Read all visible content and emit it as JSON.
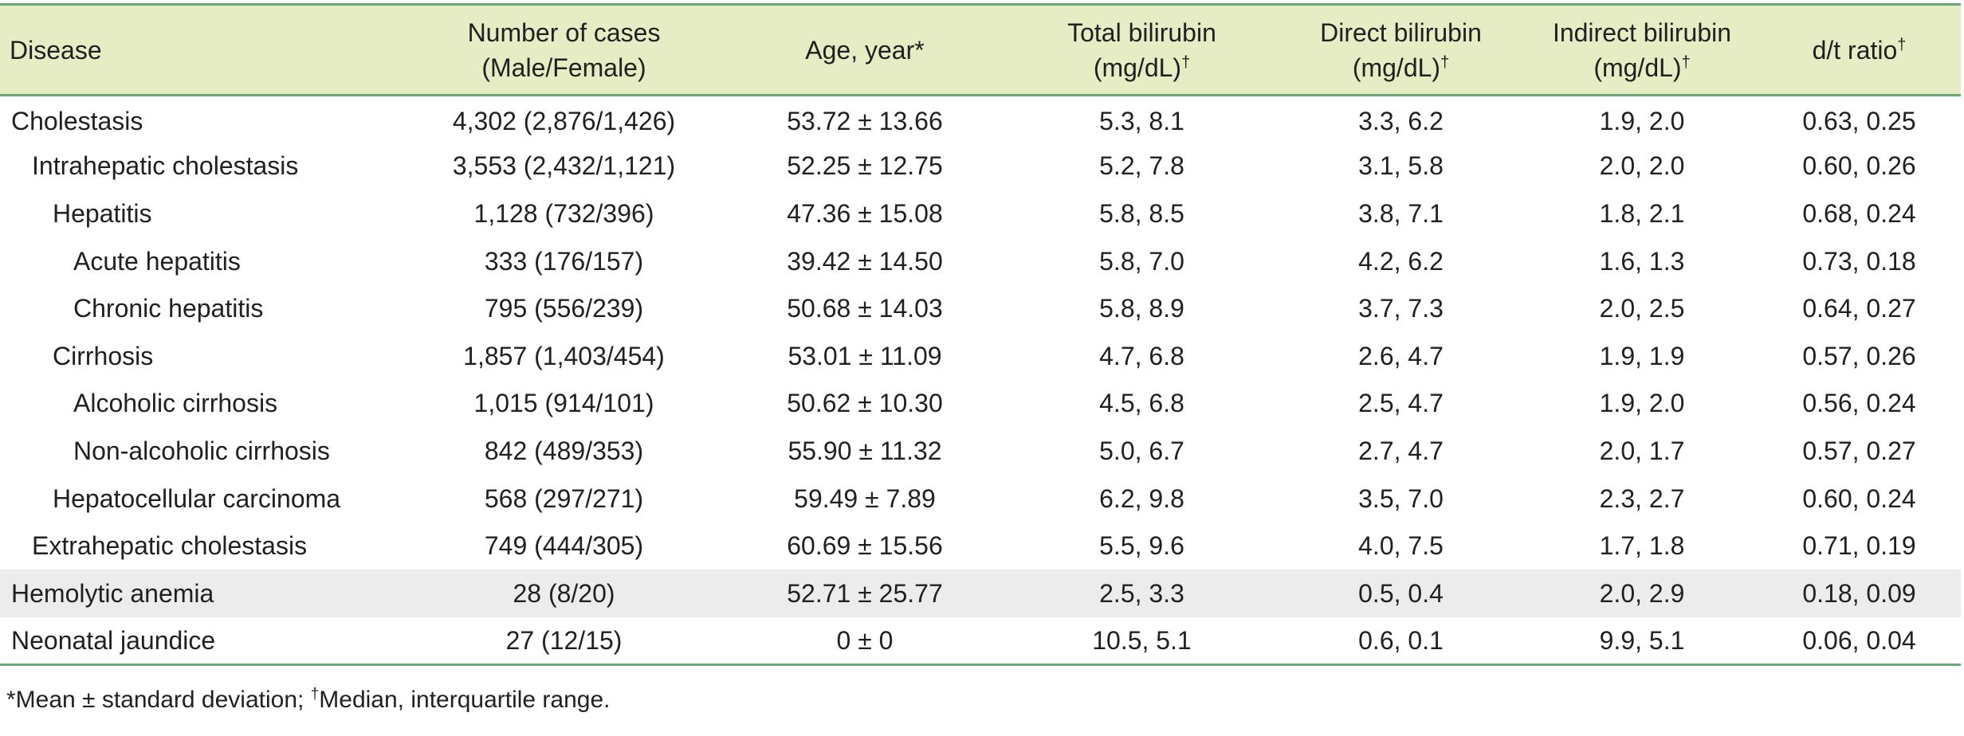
{
  "table": {
    "headers": [
      {
        "line1": "Disease",
        "line2": "",
        "mark": ""
      },
      {
        "line1": "Number of cases",
        "line2": "(Male/Female)",
        "mark": ""
      },
      {
        "line1": "Age, year*",
        "line2": "",
        "mark": ""
      },
      {
        "line1": "Total bilirubin",
        "line2": "(mg/dL)",
        "mark": "†"
      },
      {
        "line1": "Direct bilirubin",
        "line2": "(mg/dL)",
        "mark": "†"
      },
      {
        "line1": "Indirect bilirubin",
        "line2": "(mg/dL)",
        "mark": "†"
      },
      {
        "line1": "d/t ratio",
        "line2": "",
        "mark": "†"
      }
    ],
    "rows": [
      {
        "level": 0,
        "shaded": false,
        "cells": [
          "Cholestasis",
          "4,302 (2,876/1,426)",
          "53.72 ± 13.66",
          "5.3, 8.1",
          "3.3, 6.2",
          "1.9, 2.0",
          "0.63, 0.25"
        ]
      },
      {
        "level": 1,
        "shaded": false,
        "cells": [
          "Intrahepatic cholestasis",
          "3,553 (2,432/1,121)",
          "52.25 ± 12.75",
          "5.2, 7.8",
          "3.1, 5.8",
          "2.0, 2.0",
          "0.60, 0.26"
        ]
      },
      {
        "level": 2,
        "shaded": false,
        "cells": [
          "Hepatitis",
          "1,128 (732/396)",
          "47.36 ± 15.08",
          "5.8, 8.5",
          "3.8, 7.1",
          "1.8, 2.1",
          "0.68, 0.24"
        ]
      },
      {
        "level": 3,
        "shaded": false,
        "cells": [
          "Acute hepatitis",
          "333 (176/157)",
          "39.42 ± 14.50",
          "5.8, 7.0",
          "4.2, 6.2",
          "1.6, 1.3",
          "0.73, 0.18"
        ]
      },
      {
        "level": 3,
        "shaded": false,
        "cells": [
          "Chronic hepatitis",
          "795 (556/239)",
          "50.68 ± 14.03",
          "5.8, 8.9",
          "3.7, 7.3",
          "2.0, 2.5",
          "0.64, 0.27"
        ]
      },
      {
        "level": 2,
        "shaded": false,
        "cells": [
          "Cirrhosis",
          "1,857 (1,403/454)",
          "53.01 ± 11.09",
          "4.7, 6.8",
          "2.6, 4.7",
          "1.9, 1.9",
          "0.57, 0.26"
        ]
      },
      {
        "level": 3,
        "shaded": false,
        "cells": [
          "Alcoholic cirrhosis",
          "1,015 (914/101)",
          "50.62 ± 10.30",
          "4.5, 6.8",
          "2.5, 4.7",
          "1.9, 2.0",
          "0.56, 0.24"
        ]
      },
      {
        "level": 3,
        "shaded": false,
        "cells": [
          "Non-alcoholic cirrhosis",
          "842 (489/353)",
          "55.90 ± 11.32",
          "5.0, 6.7",
          "2.7, 4.7",
          "2.0, 1.7",
          "0.57, 0.27"
        ]
      },
      {
        "level": 2,
        "shaded": false,
        "cells": [
          "Hepatocellular carcinoma",
          "568 (297/271)",
          "59.49 ± 7.89",
          "6.2, 9.8",
          "3.5, 7.0",
          "2.3, 2.7",
          "0.60, 0.24"
        ]
      },
      {
        "level": 1,
        "shaded": false,
        "cells": [
          "Extrahepatic cholestasis",
          "749 (444/305)",
          "60.69 ± 15.56",
          "5.5, 9.6",
          "4.0, 7.5",
          "1.7, 1.8",
          "0.71, 0.19"
        ]
      },
      {
        "level": 0,
        "shaded": true,
        "cells": [
          "Hemolytic anemia",
          "28 (8/20)",
          "52.71 ± 25.77",
          "2.5, 3.3",
          "0.5, 0.4",
          "2.0, 2.9",
          "0.18, 0.09"
        ]
      },
      {
        "level": 0,
        "shaded": false,
        "cells": [
          "Neonatal jaundice",
          "27 (12/15)",
          "0 ± 0",
          "10.5, 5.1",
          "0.6, 0.1",
          "9.9, 5.1",
          "0.06, 0.04"
        ]
      }
    ]
  },
  "footnote": {
    "part1": "*Mean ± standard deviation; ",
    "mark": "†",
    "part2": "Median, interquartile range."
  },
  "colors": {
    "header_bg": "#e6ecc3",
    "rule": "#6aa878",
    "shaded_row": "#ececec",
    "text": "#231f20"
  }
}
